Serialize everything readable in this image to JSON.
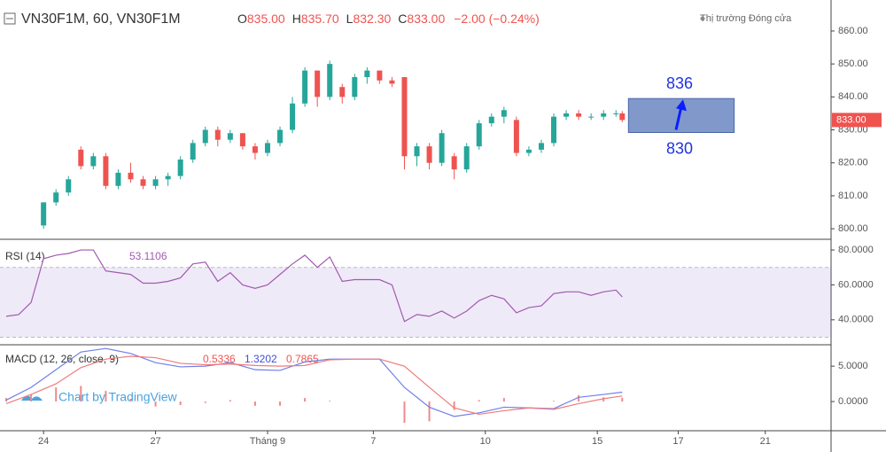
{
  "chart_data": [
    {
      "type": "candlestick",
      "title": "VN30F1M, 60, VN30F1M",
      "status": "Thị trường Đóng cửa",
      "ohlc": [
        {
          "key": "O",
          "label": "835.00"
        },
        {
          "key": "H",
          "label": "835.70"
        },
        {
          "key": "L",
          "label": "832.30"
        },
        {
          "key": "C",
          "label": "833.00"
        }
      ],
      "change": "−2.00 (−0.24%)",
      "price_label": "833.00",
      "up_color": "#26a69a",
      "down_color": "#ef5350",
      "xlim": [
        -7,
        125
      ],
      "ylim": [
        796.8,
        869.4
      ],
      "yticks": [
        {
          "value": 800,
          "label": "800.00"
        },
        {
          "value": 810,
          "label": "810.00"
        },
        {
          "value": 820,
          "label": "820.00"
        },
        {
          "value": 830,
          "label": "830.00"
        },
        {
          "value": 840,
          "label": "840.00"
        },
        {
          "value": 850,
          "label": "850.00"
        },
        {
          "value": 860,
          "label": "860.00"
        }
      ],
      "grid": false,
      "x": [
        0,
        2,
        4,
        6,
        8,
        10,
        12,
        14,
        16,
        18,
        20,
        22,
        24,
        26,
        28,
        30,
        32,
        34,
        36,
        38,
        40,
        42,
        44,
        46,
        48,
        50,
        52,
        54,
        56,
        58,
        60,
        62,
        64,
        66,
        68,
        70,
        72,
        74,
        76,
        78,
        80,
        82,
        84,
        86,
        88,
        90,
        92,
        93
      ],
      "open": [
        801,
        808,
        811,
        824,
        819,
        822,
        813,
        817,
        815,
        813,
        815,
        816,
        821,
        826,
        830,
        827,
        829,
        825,
        823,
        826,
        830,
        838,
        848,
        840,
        843,
        840,
        846,
        848,
        845,
        846,
        822,
        825,
        820,
        822,
        818,
        825,
        832,
        834,
        833,
        823,
        824,
        826,
        834,
        835,
        834,
        834,
        835,
        835
      ],
      "high": [
        808,
        812,
        816,
        825,
        823,
        823,
        818,
        820,
        816,
        816,
        817,
        822,
        827,
        831,
        831,
        830,
        829,
        826,
        827,
        831,
        840,
        849,
        848,
        851,
        844,
        847,
        849,
        848,
        846,
        846,
        826,
        826,
        830,
        823,
        826,
        833,
        835,
        837,
        834,
        825,
        827,
        835,
        836,
        836,
        835,
        836,
        836,
        835.7
      ],
      "low": [
        800,
        807,
        810,
        818,
        818,
        812,
        812,
        814,
        812,
        812,
        813,
        815,
        820,
        825,
        825,
        826,
        824,
        821,
        822,
        825,
        829,
        837,
        837,
        839,
        838,
        839,
        844,
        844,
        843,
        818,
        819,
        818,
        819,
        815,
        817,
        824,
        831,
        832,
        822,
        822,
        823,
        825,
        833,
        833,
        833,
        833,
        834,
        832.3
      ],
      "close": [
        808,
        811,
        815,
        819,
        822,
        813,
        817,
        815,
        813,
        815,
        816,
        821,
        826,
        830,
        827,
        829,
        825,
        823,
        826,
        830,
        838,
        848,
        840,
        850,
        840,
        846,
        848,
        845,
        844,
        822,
        825,
        820,
        829,
        818,
        825,
        832,
        834,
        836,
        823,
        824,
        826,
        834,
        835,
        834,
        834,
        835,
        835,
        833
      ],
      "annotation": {
        "x": [
          94,
          111
        ],
        "y": [
          829.2,
          839.5
        ],
        "color": "#6b86c2",
        "upper": "836",
        "lower": "830"
      }
    },
    {
      "type": "line",
      "title": "RSI (14)",
      "last_value": 53.1106,
      "color": "#a15ab0",
      "xlim": [
        -7,
        125
      ],
      "ylim": [
        26.2,
        85.1
      ],
      "band": [
        30,
        70
      ],
      "yticks": [
        {
          "value": 40,
          "label": "40.0000"
        },
        {
          "value": 60,
          "label": "60.0000"
        },
        {
          "value": 80,
          "label": "80.0000"
        }
      ],
      "x": [
        -6,
        -4,
        -2,
        0,
        2,
        4,
        6,
        8,
        10,
        12,
        14,
        16,
        18,
        20,
        22,
        24,
        26,
        28,
        30,
        32,
        34,
        36,
        38,
        40,
        42,
        44,
        46,
        48,
        50,
        52,
        54,
        56,
        58,
        60,
        62,
        64,
        66,
        68,
        70,
        72,
        74,
        76,
        78,
        80,
        82,
        84,
        86,
        88,
        90,
        92,
        93
      ],
      "values": [
        42,
        43,
        50,
        75,
        77,
        78,
        80,
        80,
        68,
        67,
        66,
        61,
        61,
        62,
        64,
        72,
        73,
        62,
        67,
        60,
        58,
        60,
        66,
        72,
        77,
        70,
        76,
        62,
        63,
        63,
        63,
        60,
        39,
        43,
        42,
        45,
        41,
        45,
        51,
        54,
        52,
        44,
        47,
        48,
        55,
        56,
        56,
        54,
        56,
        57,
        53.1106
      ]
    },
    {
      "type": "line",
      "title": "MACD (12, 26, close, 9)",
      "logo": "Chart by TradingView",
      "xlim": [
        -7,
        125
      ],
      "ylim": [
        -4,
        7.9
      ],
      "yticks": [
        {
          "value": 0,
          "label": "0.0000"
        },
        {
          "value": 5,
          "label": "5.0000"
        }
      ],
      "x": [
        -6,
        -2,
        2,
        6,
        10,
        14,
        18,
        22,
        26,
        30,
        34,
        38,
        42,
        46,
        50,
        54,
        58,
        62,
        66,
        70,
        74,
        78,
        82,
        86,
        90,
        93
      ],
      "histogram": {
        "color": "#ef8a8a",
        "last_value": 0.5336,
        "values": [
          0.5,
          1.0,
          2.0,
          2.2,
          1.5,
          0.4,
          -0.7,
          -0.5,
          -0.2,
          0.2,
          -0.6,
          -0.6,
          0.5,
          0.1,
          0,
          0,
          -3.0,
          -2.8,
          -1.2,
          0.2,
          0.5,
          0,
          0.1,
          0.9,
          0.6,
          0.5336
        ]
      },
      "series": [
        {
          "color": "#6f7fe8",
          "last_value": 1.3202,
          "values": [
            0.2,
            2.0,
            4.5,
            7.0,
            7.5,
            6.8,
            5.5,
            4.9,
            5.0,
            5.5,
            4.5,
            4.4,
            5.6,
            6.0,
            6.0,
            6.0,
            2.0,
            -0.8,
            -2.1,
            -1.6,
            -0.8,
            -0.9,
            -1.0,
            0.6,
            1.0,
            1.3202
          ]
        },
        {
          "color": "#f07a7a",
          "last_value": 0.7865,
          "values": [
            -0.3,
            1.0,
            2.5,
            4.8,
            6.0,
            6.4,
            6.2,
            5.4,
            5.2,
            5.3,
            5.1,
            5.0,
            5.1,
            5.9,
            6.0,
            6.0,
            5.0,
            2.0,
            -0.9,
            -1.8,
            -1.3,
            -0.9,
            -1.1,
            -0.3,
            0.4,
            0.7865
          ]
        }
      ],
      "xticks": [
        {
          "value": 0,
          "label": "24"
        },
        {
          "value": 18,
          "label": "27"
        },
        {
          "value": 36,
          "label": "Tháng 9"
        },
        {
          "value": 53,
          "label": "7"
        },
        {
          "value": 71,
          "label": "10"
        },
        {
          "value": 89,
          "label": "15"
        },
        {
          "value": 102,
          "label": "17"
        },
        {
          "value": 116,
          "label": "21"
        }
      ]
    }
  ]
}
